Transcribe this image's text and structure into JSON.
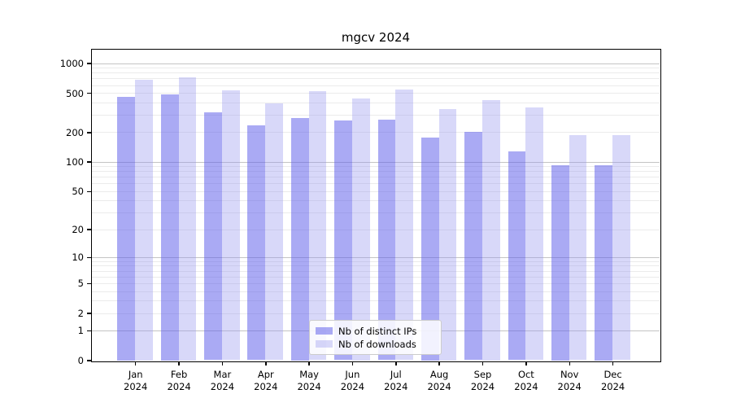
{
  "chart_data": {
    "type": "bar",
    "title": "mgcv 2024",
    "year_label": "2024",
    "categories": [
      "Jan",
      "Feb",
      "Mar",
      "Apr",
      "May",
      "Jun",
      "Jul",
      "Aug",
      "Sep",
      "Oct",
      "Nov",
      "Dec"
    ],
    "series": [
      {
        "name": "Nb of distinct IPs",
        "color_hex": "#a9a9f1",
        "fill_rgba": "rgba(92,92,233,0.52)",
        "values": [
          460,
          487,
          315,
          235,
          281,
          261,
          266,
          178,
          200,
          127,
          93,
          93
        ]
      },
      {
        "name": "Nb of downloads",
        "color_hex": "#d8d8fa",
        "fill_rgba": "rgba(150,150,240,0.37)",
        "values": [
          685,
          725,
          528,
          393,
          516,
          443,
          536,
          346,
          426,
          353,
          188,
          186
        ]
      }
    ],
    "yaxis": {
      "tick_labels": [
        1000,
        500,
        200,
        100,
        50,
        20,
        10,
        5,
        2,
        1,
        0
      ],
      "major_gridline_values": [
        1,
        10,
        100,
        1000
      ],
      "scale": "log10(v+1)",
      "ylim": [
        0,
        1380
      ],
      "grid": true
    },
    "legend": {
      "position": "lower-center-inside"
    }
  }
}
